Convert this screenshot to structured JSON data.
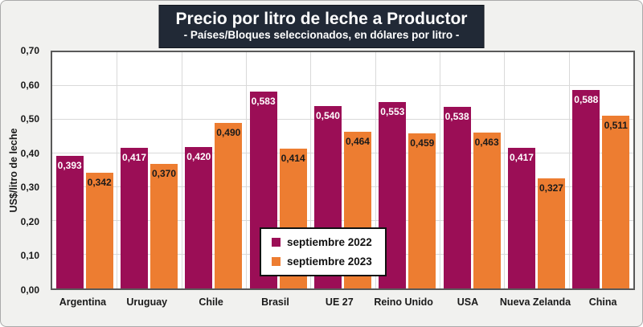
{
  "header": {
    "title": "Precio por litro de leche a Productor",
    "subtitle": "- Países/Bloques seleccionados, en dólares por litro -",
    "title_bg_color": "#212936",
    "title_text_color": "#ffffff"
  },
  "axes": {
    "y_title": "US$/litro de leche"
  },
  "legend": {
    "items": [
      {
        "label": "septiembre 2022",
        "color": "#9B0E56"
      },
      {
        "label": "septiembre 2023",
        "color": "#ED7D31"
      }
    ]
  },
  "chart_data": {
    "type": "bar",
    "title": "Precio por litro de leche a Productor",
    "subtitle": "- Países/Bloques seleccionados, en dólares por litro -",
    "ylabel": "US$/litro de leche",
    "xlabel": "",
    "categories": [
      "Argentina",
      "Uruguay",
      "Chile",
      "Brasil",
      "UE 27",
      "Reino Unido",
      "USA",
      "Nueva Zelanda",
      "China"
    ],
    "series": [
      {
        "name": "septiembre 2022",
        "color": "#9B0E56",
        "label_color": "#ffffff",
        "values": [
          0.393,
          0.417,
          0.42,
          0.583,
          0.54,
          0.553,
          0.538,
          0.417,
          0.588
        ],
        "labels": [
          "0,393",
          "0,417",
          "0,420",
          "0,583",
          "0,540",
          "0,553",
          "0,538",
          "0,417",
          "0,588"
        ]
      },
      {
        "name": "septiembre 2023",
        "color": "#ED7D31",
        "label_color": "#1a1a1a",
        "values": [
          0.342,
          0.37,
          0.49,
          0.414,
          0.464,
          0.459,
          0.463,
          0.327,
          0.511
        ],
        "labels": [
          "0,342",
          "0,370",
          "0,490",
          "0,414",
          "0,464",
          "0,459",
          "0,463",
          "0,327",
          "0,511"
        ]
      }
    ],
    "ylim": [
      0,
      0.7
    ],
    "ytick_step": 0.1,
    "yticks": [
      "0,00",
      "0,10",
      "0,20",
      "0,30",
      "0,40",
      "0,50",
      "0,60",
      "0,70"
    ],
    "grid": true,
    "gridline_color": "#d9d9d9",
    "legend_position": "bottom-center-overlay"
  }
}
